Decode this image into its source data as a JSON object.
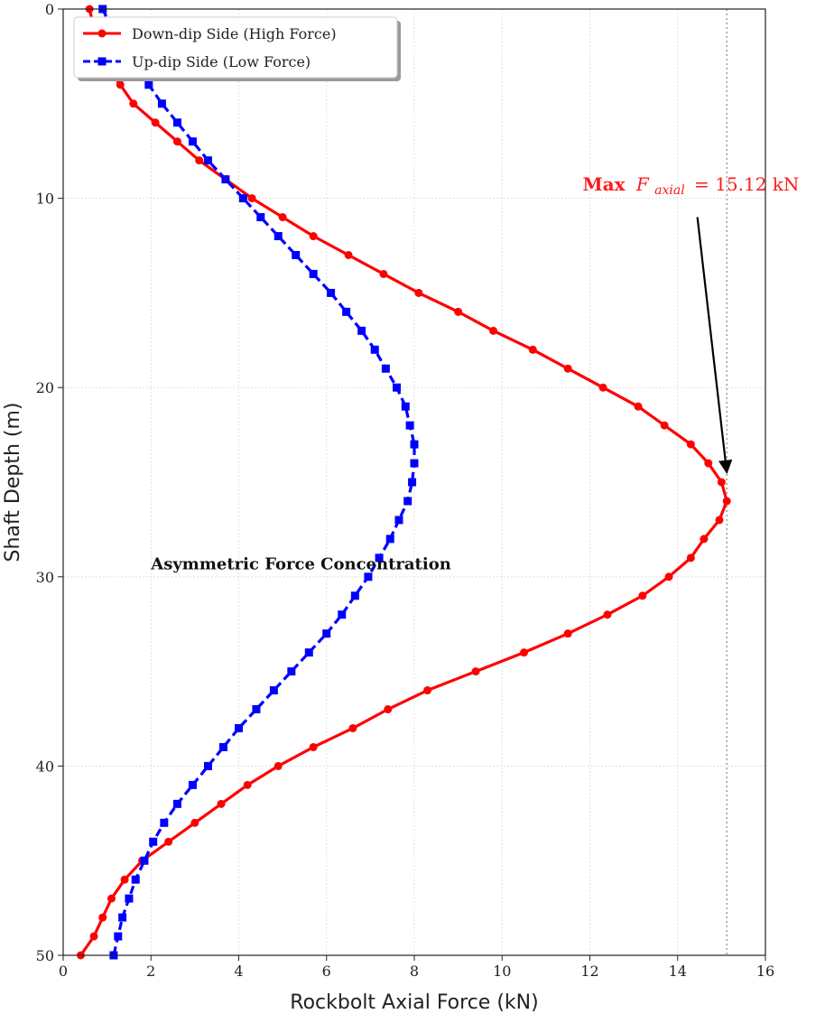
{
  "chart_data": {
    "type": "line",
    "xlabel": "Rockbolt Axial Force (kN)",
    "ylabel": "Shaft Depth (m)",
    "xlim": [
      0,
      16
    ],
    "ylim": [
      50,
      0
    ],
    "y_inverted": true,
    "grid": true,
    "x_ticks": [
      "0",
      "2",
      "4",
      "6",
      "8",
      "10",
      "12",
      "14",
      "16"
    ],
    "y_ticks": [
      "0",
      "10",
      "20",
      "30",
      "40",
      "50"
    ],
    "legend_position": "top-left",
    "series": [
      {
        "name": "Down-dip Side (High Force)",
        "color": "#ff0000",
        "marker": "circle",
        "linestyle": "solid",
        "x": [
          0.6,
          0.7,
          0.8,
          1.0,
          1.3,
          1.6,
          2.1,
          2.6,
          3.1,
          3.7,
          4.3,
          5.0,
          5.7,
          6.5,
          7.3,
          8.1,
          9.0,
          9.8,
          10.7,
          11.5,
          12.3,
          13.1,
          13.7,
          14.3,
          14.7,
          15.0,
          15.12,
          14.95,
          14.6,
          14.3,
          13.8,
          13.2,
          12.4,
          11.5,
          10.5,
          9.4,
          8.3,
          7.4,
          6.6,
          5.7,
          4.9,
          4.2,
          3.6,
          3.0,
          2.4,
          1.8,
          1.4,
          1.1,
          0.9,
          0.7,
          0.4
        ],
        "y": [
          0,
          1,
          2,
          3,
          4,
          5,
          6,
          7,
          8,
          9,
          10,
          11,
          12,
          13,
          14,
          15,
          16,
          17,
          18,
          19,
          20,
          21,
          22,
          23,
          24,
          25,
          26,
          27,
          28,
          29,
          30,
          31,
          32,
          33,
          34,
          35,
          36,
          37,
          38,
          39,
          40,
          41,
          42,
          43,
          44,
          45,
          46,
          47,
          48,
          49,
          50
        ]
      },
      {
        "name": "Up-dip Side (Low Force)",
        "color": "#0000ff",
        "marker": "square",
        "linestyle": "dashed",
        "x": [
          0.9,
          1.1,
          1.4,
          1.7,
          1.95,
          2.25,
          2.6,
          2.95,
          3.3,
          3.7,
          4.1,
          4.5,
          4.9,
          5.3,
          5.7,
          6.1,
          6.45,
          6.8,
          7.1,
          7.35,
          7.6,
          7.8,
          7.9,
          8.0,
          8.0,
          7.95,
          7.85,
          7.65,
          7.45,
          7.2,
          6.95,
          6.65,
          6.35,
          6.0,
          5.6,
          5.2,
          4.8,
          4.4,
          4.0,
          3.65,
          3.3,
          2.95,
          2.6,
          2.3,
          2.05,
          1.85,
          1.65,
          1.5,
          1.35,
          1.25,
          1.15
        ],
        "y": [
          0,
          1,
          2,
          3,
          4,
          5,
          6,
          7,
          8,
          9,
          10,
          11,
          12,
          13,
          14,
          15,
          16,
          17,
          18,
          19,
          20,
          21,
          22,
          23,
          24,
          25,
          26,
          27,
          28,
          29,
          30,
          31,
          32,
          33,
          34,
          35,
          36,
          37,
          38,
          39,
          40,
          41,
          42,
          43,
          44,
          45,
          46,
          47,
          48,
          49,
          50
        ]
      }
    ],
    "vline": {
      "x": 15.12,
      "style": "dotted",
      "color": "#888888"
    },
    "annotations": [
      {
        "text": "Asymmetric Force Concentration",
        "x": 2.0,
        "y": 29.6
      },
      {
        "text_prefix": "Max",
        "text_symbol": "F",
        "text_subscript": "axial",
        "text_value": "= 15.12 kN",
        "x": 12.0,
        "y": 9.6,
        "color": "#ff1a1a",
        "arrow_from": [
          14.45,
          11.0
        ],
        "arrow_to": [
          15.12,
          24.5
        ]
      }
    ]
  }
}
